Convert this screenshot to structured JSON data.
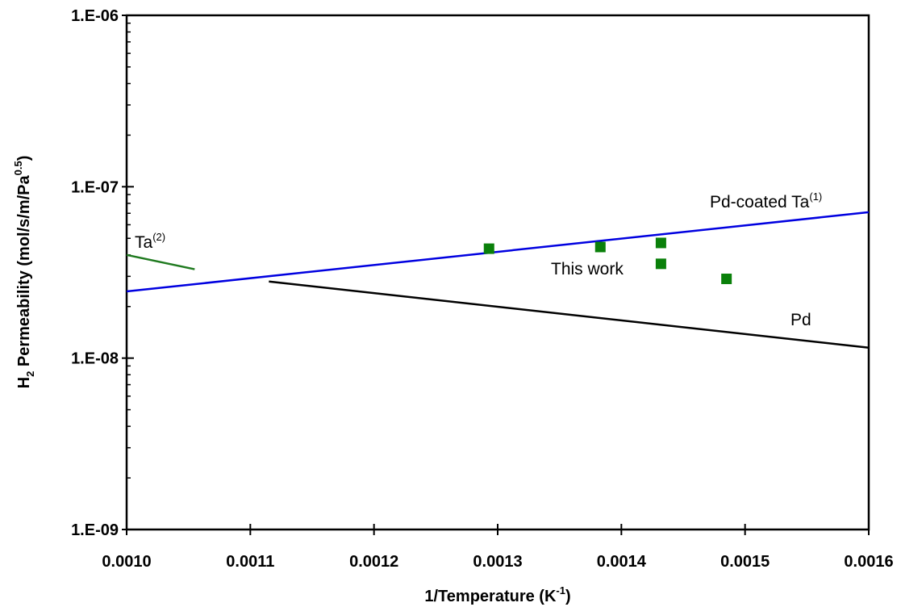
{
  "chart_data": {
    "type": "scatter",
    "title": "",
    "xlabel": {
      "main": "1/Temperature (K",
      "sup": "-1",
      "close": ")"
    },
    "ylabel": {
      "h": "H",
      "sub": "2",
      "main": " Permeability (mol/s/m/Pa",
      "sup": "0.5",
      "close": ")"
    },
    "xlim": [
      0.001,
      0.0016
    ],
    "ylim": [
      1e-09,
      1e-06
    ],
    "yscale": "log",
    "grid": false,
    "xticks": [
      0.001,
      0.0011,
      0.0012,
      0.0013,
      0.0014,
      0.0015,
      0.0016
    ],
    "xtick_labels": [
      "0.0010",
      "0.0011",
      "0.0012",
      "0.0013",
      "0.0014",
      "0.0015",
      "0.0016"
    ],
    "yticks": [
      1e-09,
      1e-08,
      1e-07,
      1e-06
    ],
    "ytick_labels": [
      "1.E-09",
      "1.E-08",
      "1.E-07",
      "1.E-06"
    ],
    "series": [
      {
        "kind": "line",
        "color": "#0000e0",
        "points": [
          [
            0.001,
            2.45e-08
          ],
          [
            0.0016,
            7.1e-08
          ]
        ]
      },
      {
        "kind": "line",
        "color": "#000000",
        "points": [
          [
            0.001115,
            2.8e-08
          ],
          [
            0.0016,
            1.15e-08
          ]
        ]
      },
      {
        "kind": "line",
        "color": "#1f7a1f",
        "points": [
          [
            0.001,
            4e-08
          ],
          [
            0.001055,
            3.3e-08
          ]
        ]
      },
      {
        "kind": "scatter",
        "color": "#0a800a",
        "marker": "square",
        "points": [
          [
            0.001293,
            4.35e-08
          ],
          [
            0.001383,
            4.45e-08
          ],
          [
            0.001432,
            4.7e-08
          ],
          [
            0.001432,
            3.55e-08
          ],
          [
            0.001485,
            2.9e-08
          ]
        ]
      }
    ],
    "annotations": {
      "pd_coated": {
        "main": "Pd-coated Ta",
        "sup": "(1)"
      },
      "ta": {
        "main": "Ta",
        "sup": "(2)"
      },
      "this_work": {
        "main": "This work"
      },
      "pd": {
        "main": "Pd"
      }
    }
  }
}
